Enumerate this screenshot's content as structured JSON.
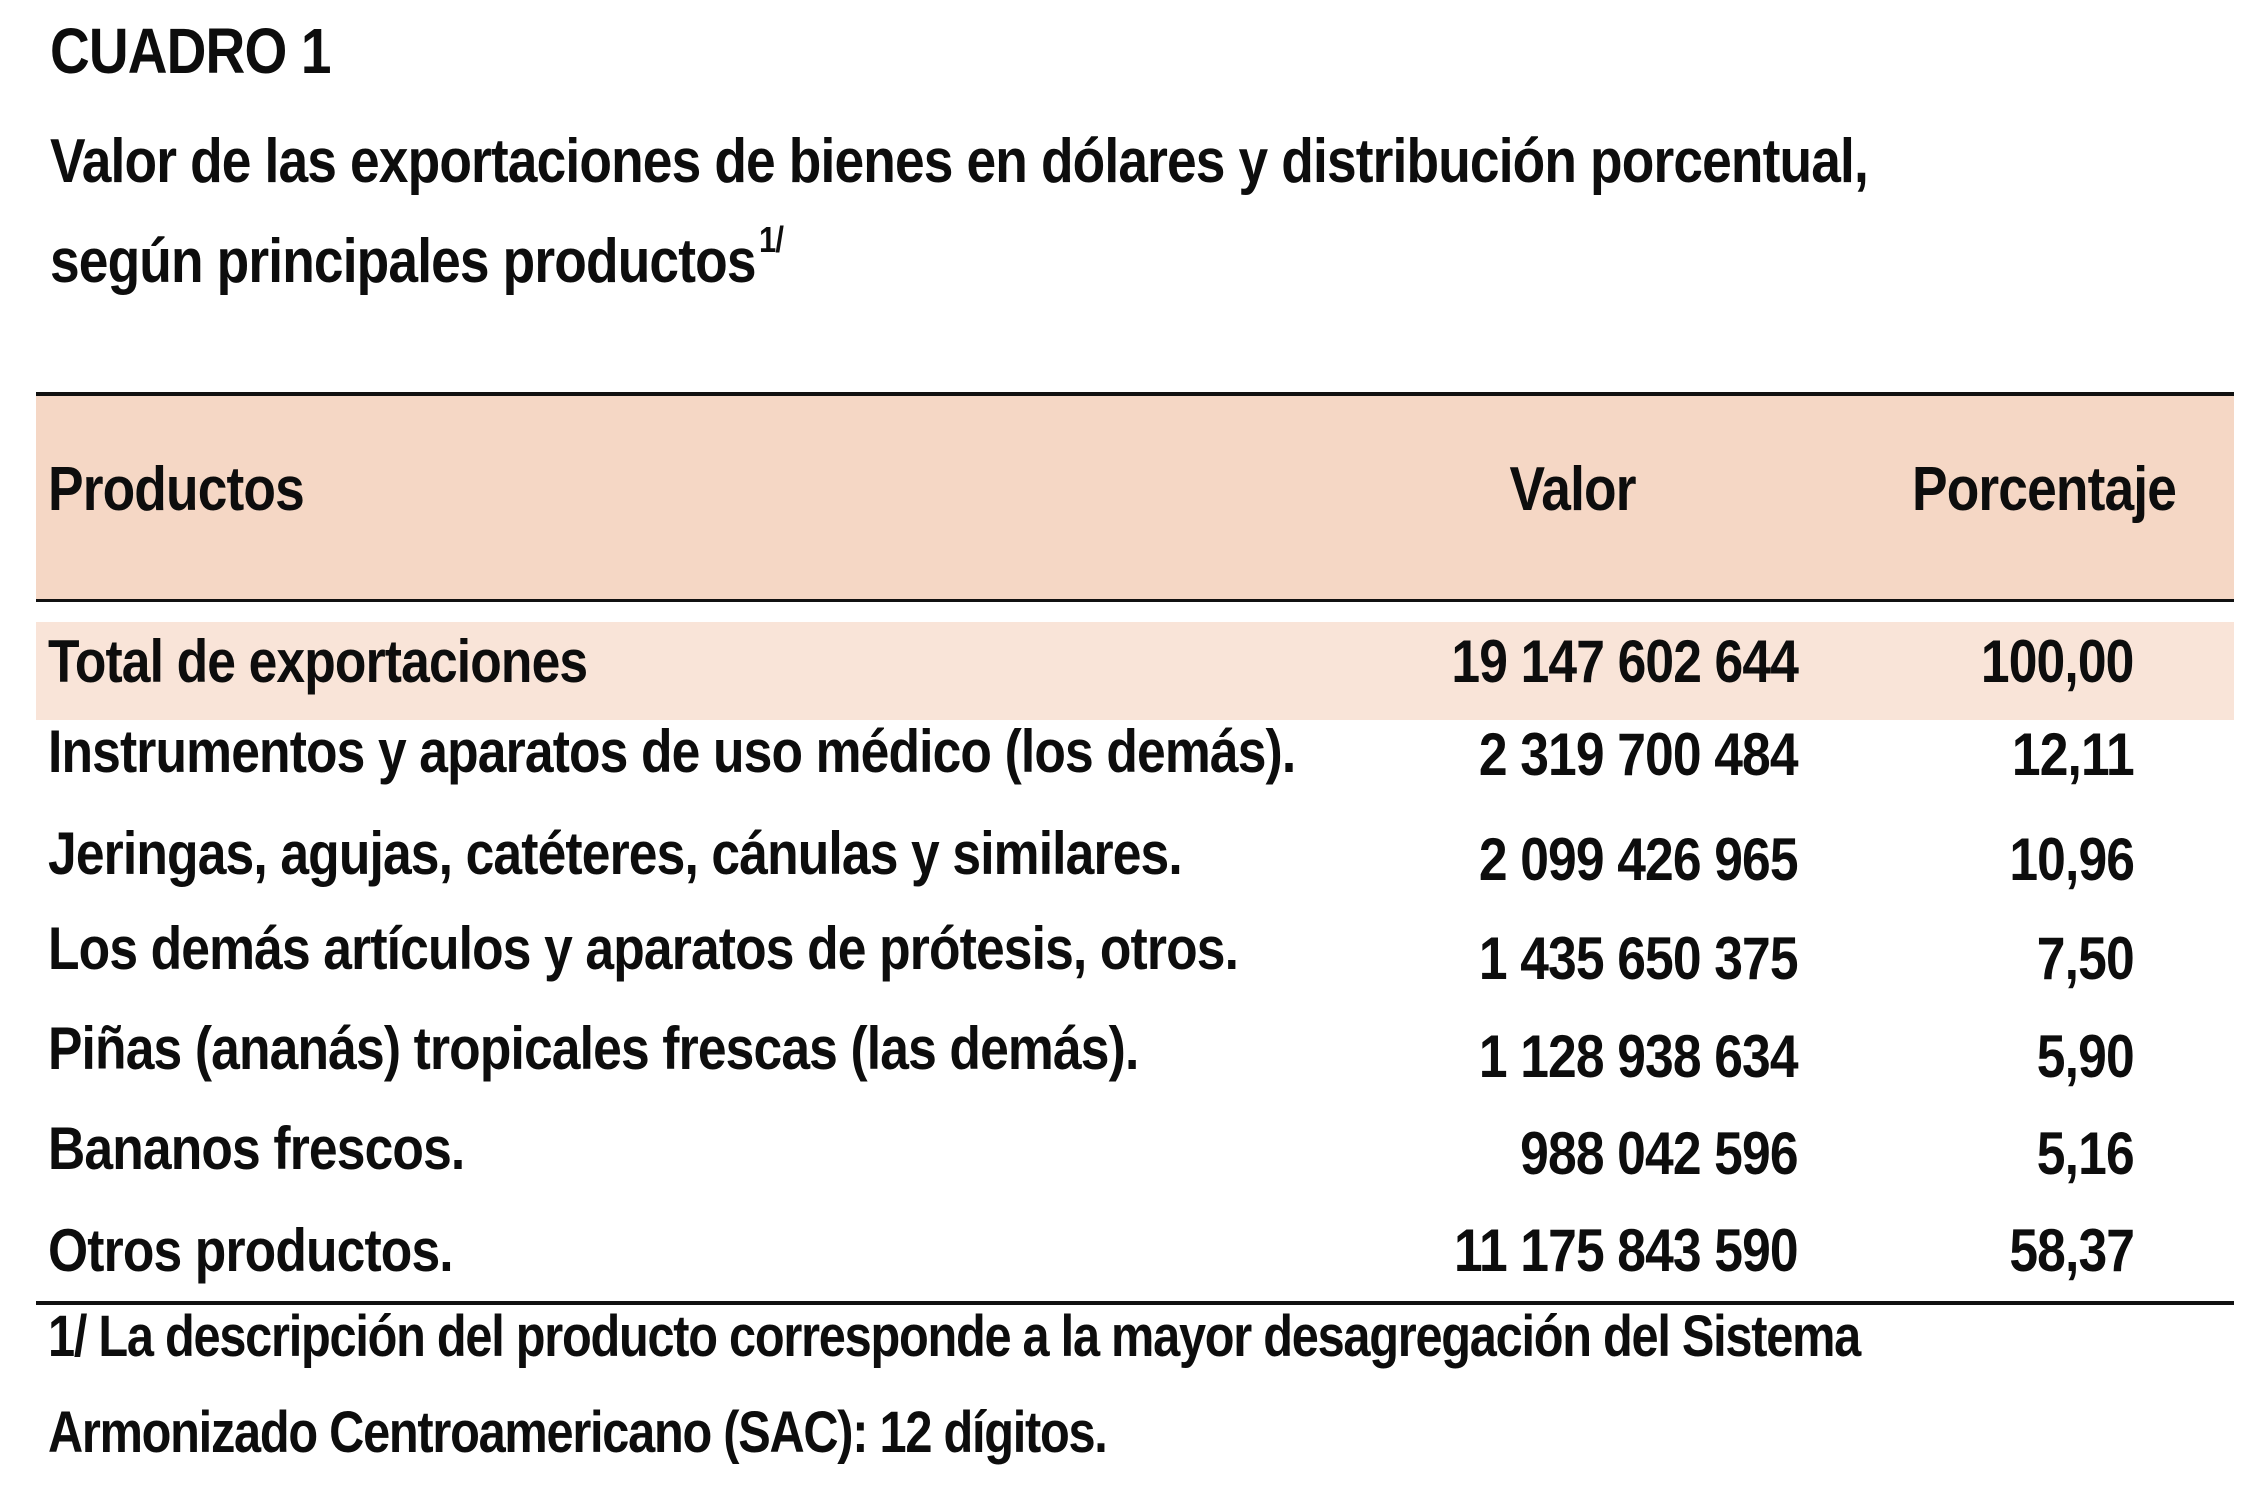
{
  "caption": {
    "label": "CUADRO 1",
    "title_line1": "Valor de las exportaciones de bienes en dólares y distribución porcentual,",
    "title_line2": "según principales productos",
    "footnote_marker": "1/"
  },
  "table": {
    "headers": {
      "product": "Productos",
      "value": "Valor",
      "percent": "Porcentaje"
    },
    "total": {
      "product": "Total de exportaciones",
      "value": "19 147 602 644",
      "percent": "100,00"
    },
    "rows": [
      {
        "product": "Instrumentos y aparatos de uso médico (los demás).",
        "value": "2 319 700 484",
        "percent": "12,11"
      },
      {
        "product": "Jeringas, agujas, catéteres, cánulas y similares.",
        "value": "2 099 426 965",
        "percent": "10,96"
      },
      {
        "product": "Los demás artículos y aparatos de prótesis, otros.",
        "value": "1 435 650 375",
        "percent": "7,50"
      },
      {
        "product": "Piñas (ananás) tropicales frescas (las demás).",
        "value": "1 128 938 634",
        "percent": "5,90"
      },
      {
        "product": "Bananos frescos.",
        "value": "988 042 596",
        "percent": "5,16"
      },
      {
        "product": "Otros productos.",
        "value": "11 175 843 590",
        "percent": "58,37"
      }
    ]
  },
  "footnote": {
    "line1": "1/ La descripción del producto corresponde a la mayor desagregación del Sistema",
    "line2": "Armonizado Centroamericano (SAC): 12 dígitos."
  },
  "colors": {
    "header_band": "#f5d7c5",
    "total_band": "#f9e4d8",
    "text": "#0d0d0d",
    "rule": "#111111"
  }
}
